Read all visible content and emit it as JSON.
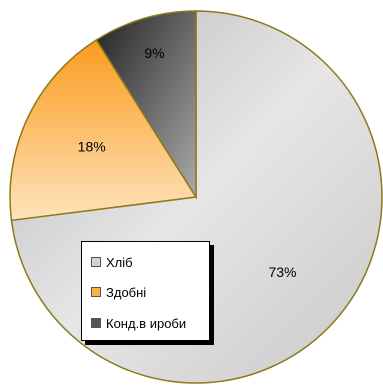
{
  "chart_data": {
    "type": "pie",
    "categories": [
      "Хліб",
      "Здобні",
      "Конд.вироби"
    ],
    "values": [
      73,
      18,
      9
    ],
    "labels": [
      "73%",
      "18%",
      "9%"
    ],
    "colors": [
      "#d4d4d4",
      "#fbb14a",
      "#555555"
    ],
    "legend": "inside-left",
    "legend_labels": [
      "Хліб",
      "Здобні",
      "Конд.в ироби"
    ]
  }
}
